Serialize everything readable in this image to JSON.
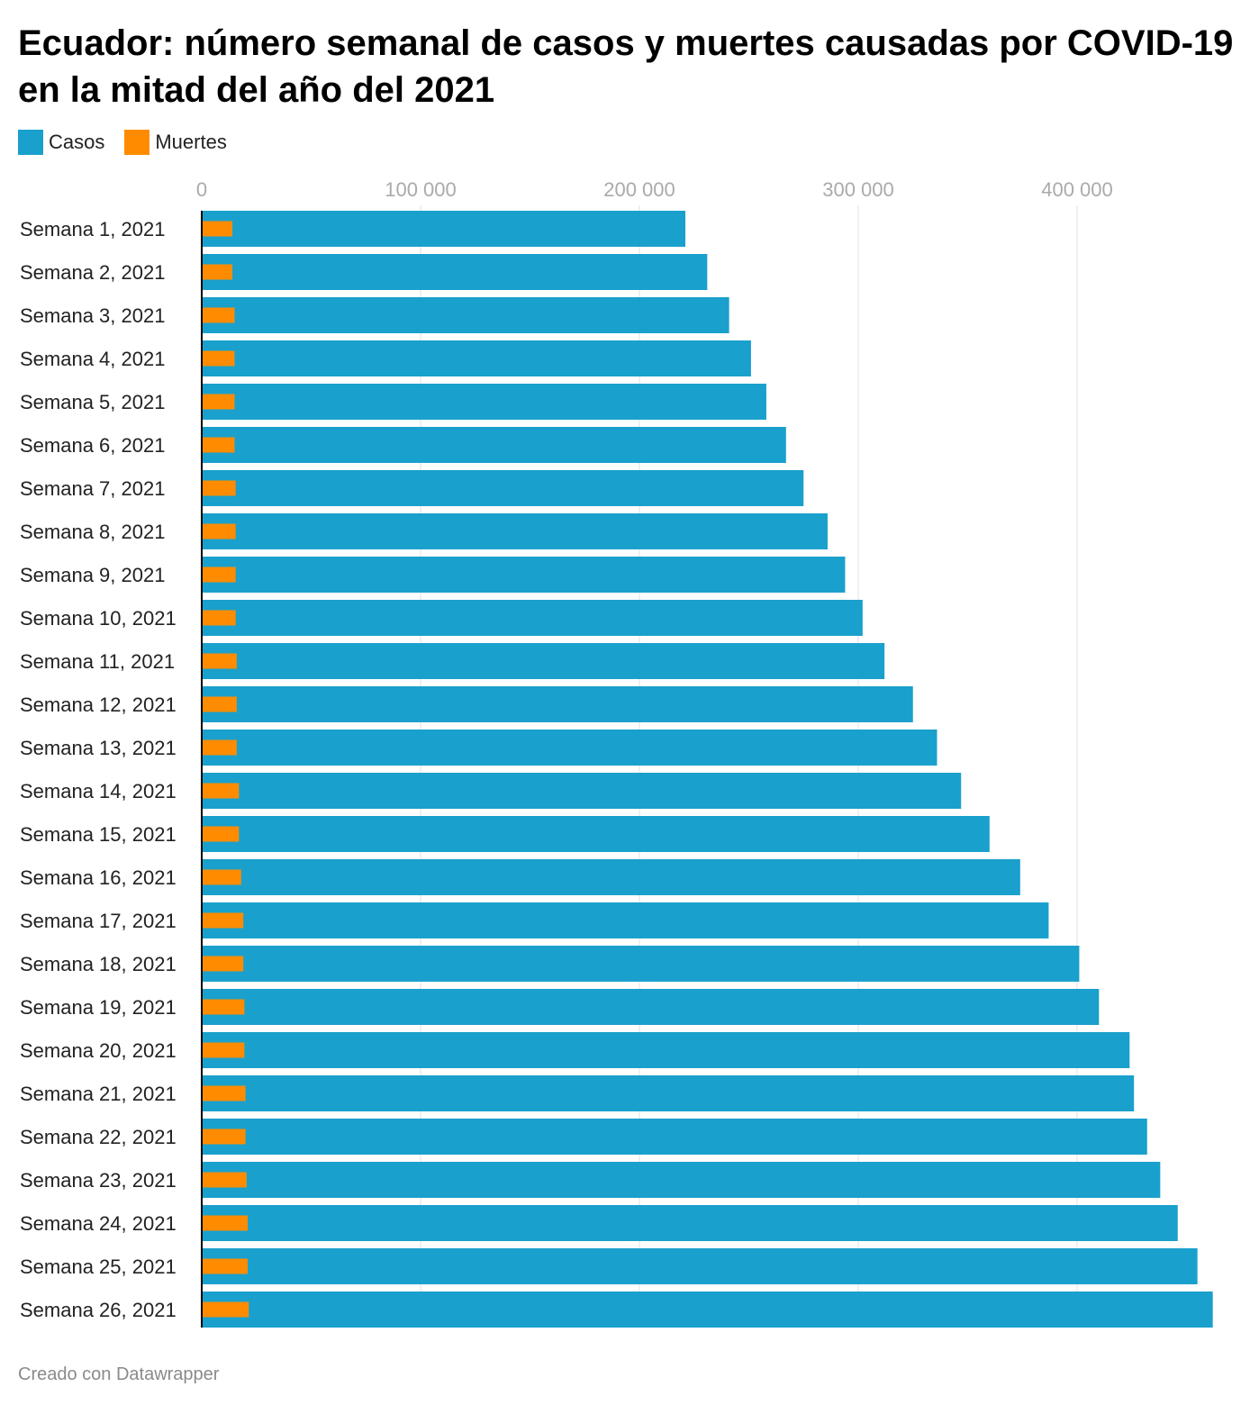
{
  "title": "Ecuador: número semanal de casos y muertes causadas por COVID-19 en la mitad del año del 2021",
  "legend": [
    {
      "label": "Casos",
      "color": "#1aa0cc"
    },
    {
      "label": "Muertes",
      "color": "#ff8c00"
    }
  ],
  "footer": "Creado con Datawrapper",
  "chart_data": {
    "type": "bar",
    "orientation": "horizontal",
    "xlim": [
      0,
      460000
    ],
    "ticks": [
      0,
      100000,
      200000,
      300000,
      400000
    ],
    "tick_labels": [
      "0",
      "100 000",
      "200 000",
      "300 000",
      "400 000"
    ],
    "grid": true,
    "legend_position": "top-left",
    "categories": [
      "Semana 1, 2021",
      "Semana 2, 2021",
      "Semana 3, 2021",
      "Semana 4, 2021",
      "Semana 5, 2021",
      "Semana 6, 2021",
      "Semana 7, 2021",
      "Semana 8, 2021",
      "Semana 9, 2021",
      "Semana 10, 2021",
      "Semana 11, 2021",
      "Semana 12, 2021",
      "Semana 13, 2021",
      "Semana 14, 2021",
      "Semana 15, 2021",
      "Semana 16, 2021",
      "Semana 17, 2021",
      "Semana 18, 2021",
      "Semana 19, 2021",
      "Semana 20, 2021",
      "Semana 21, 2021",
      "Semana 22, 2021",
      "Semana 23, 2021",
      "Semana 24, 2021",
      "Semana 25, 2021",
      "Semana 26, 2021"
    ],
    "series": [
      {
        "name": "Casos",
        "color": "#1aa0cc",
        "values": [
          221000,
          231000,
          241000,
          251000,
          258000,
          267000,
          275000,
          286000,
          294000,
          302000,
          312000,
          325000,
          336000,
          347000,
          360000,
          374000,
          387000,
          401000,
          410000,
          424000,
          426000,
          432000,
          438000,
          446000,
          455000,
          462000
        ]
      },
      {
        "name": "Muertes",
        "color": "#ff8c00",
        "values": [
          14000,
          14000,
          15000,
          15000,
          15000,
          15000,
          15500,
          15500,
          15500,
          15500,
          16000,
          16000,
          16000,
          17000,
          17000,
          18000,
          19000,
          19000,
          19500,
          19500,
          20000,
          20000,
          20500,
          21000,
          21000,
          21500
        ]
      }
    ]
  }
}
